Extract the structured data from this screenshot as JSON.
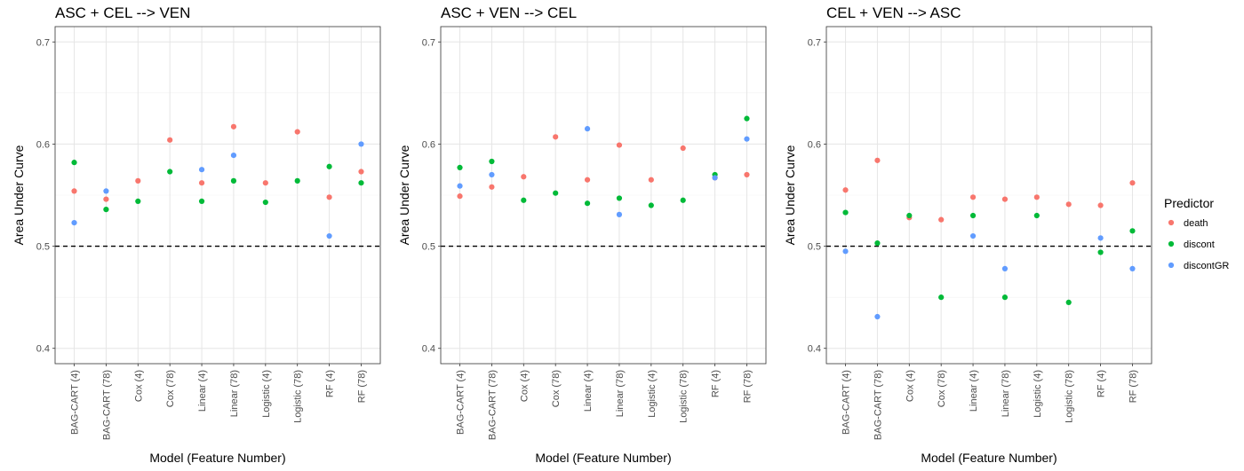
{
  "chart_data": [
    {
      "type": "scatter",
      "title": "ASC + CEL --> VEN",
      "xlabel": "Model (Feature Number)",
      "ylabel": "Area Under Curve",
      "ylim": [
        0.385,
        0.715
      ],
      "yticks": [
        0.4,
        0.5,
        0.6,
        0.7
      ],
      "reference_line": 0.5,
      "grid": true,
      "categories": [
        "BAG-CART (4)",
        "BAG-CART (78)",
        "Cox (4)",
        "Cox (78)",
        "Linear (4)",
        "Linear (78)",
        "Logistic (4)",
        "Logistic (78)",
        "RF (4)",
        "RF (78)"
      ],
      "series": [
        {
          "name": "death",
          "values": [
            0.554,
            0.546,
            0.564,
            0.604,
            0.562,
            0.617,
            0.562,
            0.612,
            0.548,
            0.573
          ]
        },
        {
          "name": "discont",
          "values": [
            0.582,
            0.536,
            0.544,
            0.573,
            0.544,
            0.564,
            0.543,
            0.564,
            0.578,
            0.562
          ]
        },
        {
          "name": "discontGR",
          "values": [
            0.523,
            0.554,
            null,
            null,
            0.575,
            0.589,
            null,
            null,
            0.51,
            0.6
          ]
        }
      ]
    },
    {
      "type": "scatter",
      "title": "ASC + VEN --> CEL",
      "xlabel": "Model (Feature Number)",
      "ylabel": "Area Under Curve",
      "ylim": [
        0.385,
        0.715
      ],
      "yticks": [
        0.4,
        0.5,
        0.6,
        0.7
      ],
      "reference_line": 0.5,
      "grid": true,
      "categories": [
        "BAG-CART (4)",
        "BAG-CART (78)",
        "Cox (4)",
        "Cox (78)",
        "Linear (4)",
        "Linear (78)",
        "Logistic (4)",
        "Logistic (78)",
        "RF (4)",
        "RF (78)"
      ],
      "series": [
        {
          "name": "death",
          "values": [
            0.549,
            0.558,
            0.568,
            0.607,
            0.565,
            0.599,
            0.565,
            0.596,
            0.567,
            0.57
          ]
        },
        {
          "name": "discont",
          "values": [
            0.577,
            0.583,
            0.545,
            0.552,
            0.542,
            0.547,
            0.54,
            0.545,
            0.57,
            0.625
          ]
        },
        {
          "name": "discontGR",
          "values": [
            0.559,
            0.57,
            null,
            null,
            0.615,
            0.531,
            null,
            null,
            0.567,
            0.605
          ]
        }
      ]
    },
    {
      "type": "scatter",
      "title": "CEL + VEN --> ASC",
      "xlabel": "Model (Feature Number)",
      "ylabel": "Area Under Curve",
      "ylim": [
        0.385,
        0.715
      ],
      "yticks": [
        0.4,
        0.5,
        0.6,
        0.7
      ],
      "reference_line": 0.5,
      "grid": true,
      "categories": [
        "BAG-CART (4)",
        "BAG-CART (78)",
        "Cox (4)",
        "Cox (78)",
        "Linear (4)",
        "Linear (78)",
        "Logistic (4)",
        "Logistic (78)",
        "RF (4)",
        "RF (78)"
      ],
      "series": [
        {
          "name": "death",
          "values": [
            0.555,
            0.584,
            0.528,
            0.526,
            0.548,
            0.546,
            0.548,
            0.541,
            0.54,
            0.562
          ]
        },
        {
          "name": "discont",
          "values": [
            0.533,
            0.503,
            0.53,
            0.45,
            0.53,
            0.45,
            0.53,
            0.445,
            0.494,
            0.515
          ]
        },
        {
          "name": "discontGR",
          "values": [
            0.495,
            0.431,
            null,
            null,
            0.51,
            0.478,
            null,
            null,
            0.508,
            0.478
          ]
        }
      ]
    }
  ],
  "legend": {
    "title": "Predictor",
    "position": "right",
    "items": [
      {
        "label": "death",
        "color": "#F8766D"
      },
      {
        "label": "discont",
        "color": "#00BA38"
      },
      {
        "label": "discontGR",
        "color": "#619CFF"
      }
    ]
  }
}
